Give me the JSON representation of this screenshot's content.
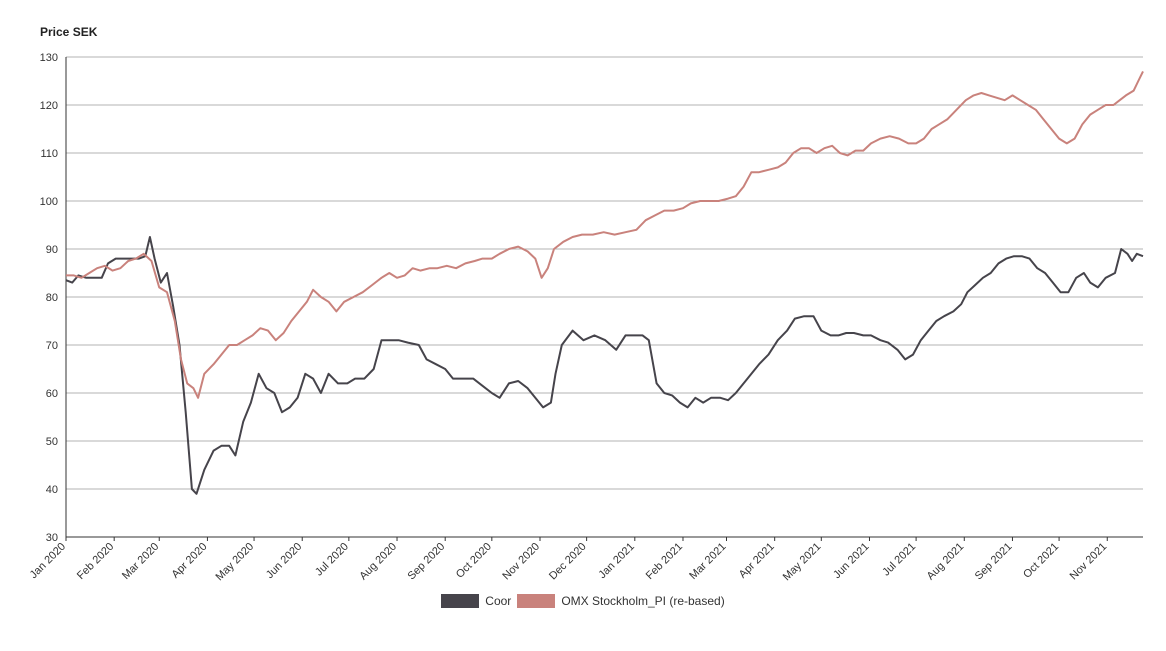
{
  "chart_data": {
    "type": "line",
    "ylabel": "Price SEK",
    "ylim": [
      30,
      130
    ],
    "yticks": [
      30,
      40,
      50,
      60,
      70,
      80,
      90,
      100,
      110,
      120,
      130
    ],
    "grid": "horizontal",
    "legend_position": "bottom-center",
    "x_tick_labels": [
      "Jan 2020",
      "Feb 2020",
      "Mar 2020",
      "Apr 2020",
      "May 2020",
      "Jun 2020",
      "Jul 2020",
      "Aug 2020",
      "Sep 2020",
      "Oct 2020",
      "Nov 2020",
      "Dec 2020",
      "Jan 2021",
      "Feb 2021",
      "Mar 2021",
      "Apr 2021",
      "May 2021",
      "Jun 2021",
      "Jul 2021",
      "Aug 2021",
      "Sep 2021",
      "Oct 2021",
      "Nov 2021"
    ],
    "x_range": [
      "2020-01-01",
      "2021-11-24"
    ],
    "series": [
      {
        "name": "Coor",
        "color": "#46444b",
        "points": [
          [
            "2020-01-01",
            83.5
          ],
          [
            "2020-01-05",
            83
          ],
          [
            "2020-01-09",
            84.5
          ],
          [
            "2020-01-14",
            84
          ],
          [
            "2020-01-19",
            84
          ],
          [
            "2020-01-24",
            84
          ],
          [
            "2020-01-28",
            87
          ],
          [
            "2020-02-02",
            88
          ],
          [
            "2020-02-07",
            88
          ],
          [
            "2020-02-12",
            88
          ],
          [
            "2020-02-17",
            88
          ],
          [
            "2020-02-21",
            88.5
          ],
          [
            "2020-02-24",
            92.5
          ],
          [
            "2020-02-27",
            88
          ],
          [
            "2020-03-02",
            83
          ],
          [
            "2020-03-06",
            85
          ],
          [
            "2020-03-10",
            78
          ],
          [
            "2020-03-14",
            70
          ],
          [
            "2020-03-18",
            56
          ],
          [
            "2020-03-22",
            40
          ],
          [
            "2020-03-25",
            39
          ],
          [
            "2020-03-30",
            44
          ],
          [
            "2020-04-05",
            48
          ],
          [
            "2020-04-10",
            49
          ],
          [
            "2020-04-15",
            49
          ],
          [
            "2020-04-19",
            47
          ],
          [
            "2020-04-24",
            54
          ],
          [
            "2020-04-29",
            58
          ],
          [
            "2020-05-04",
            64
          ],
          [
            "2020-05-09",
            61
          ],
          [
            "2020-05-14",
            60
          ],
          [
            "2020-05-19",
            56
          ],
          [
            "2020-05-24",
            57
          ],
          [
            "2020-05-29",
            59
          ],
          [
            "2020-06-03",
            64
          ],
          [
            "2020-06-08",
            63
          ],
          [
            "2020-06-13",
            60
          ],
          [
            "2020-06-18",
            64
          ],
          [
            "2020-06-24",
            62
          ],
          [
            "2020-06-30",
            62
          ],
          [
            "2020-07-05",
            63
          ],
          [
            "2020-07-11",
            63
          ],
          [
            "2020-07-17",
            65
          ],
          [
            "2020-07-22",
            71
          ],
          [
            "2020-07-28",
            71
          ],
          [
            "2020-08-02",
            71
          ],
          [
            "2020-08-08",
            70.5
          ],
          [
            "2020-08-15",
            70
          ],
          [
            "2020-08-20",
            67
          ],
          [
            "2020-08-26",
            66
          ],
          [
            "2020-09-01",
            65
          ],
          [
            "2020-09-06",
            63
          ],
          [
            "2020-09-12",
            63
          ],
          [
            "2020-09-19",
            63
          ],
          [
            "2020-09-25",
            61.5
          ],
          [
            "2020-10-01",
            60
          ],
          [
            "2020-10-06",
            59
          ],
          [
            "2020-10-12",
            62
          ],
          [
            "2020-10-18",
            62.5
          ],
          [
            "2020-10-24",
            61
          ],
          [
            "2020-10-29",
            59
          ],
          [
            "2020-11-03",
            57
          ],
          [
            "2020-11-08",
            58
          ],
          [
            "2020-11-11",
            64
          ],
          [
            "2020-11-15",
            70
          ],
          [
            "2020-11-22",
            73
          ],
          [
            "2020-11-29",
            71
          ],
          [
            "2020-12-06",
            72
          ],
          [
            "2020-12-13",
            71
          ],
          [
            "2020-12-20",
            69
          ],
          [
            "2020-12-26",
            72
          ],
          [
            "2021-01-01",
            72
          ],
          [
            "2021-01-06",
            72
          ],
          [
            "2021-01-10",
            71
          ],
          [
            "2021-01-15",
            62
          ],
          [
            "2021-01-20",
            60
          ],
          [
            "2021-01-25",
            59.5
          ],
          [
            "2021-01-30",
            58
          ],
          [
            "2021-02-04",
            57
          ],
          [
            "2021-02-09",
            59
          ],
          [
            "2021-02-14",
            58
          ],
          [
            "2021-02-19",
            59
          ],
          [
            "2021-02-25",
            59
          ],
          [
            "2021-03-02",
            58.5
          ],
          [
            "2021-03-07",
            60
          ],
          [
            "2021-03-12",
            62
          ],
          [
            "2021-03-17",
            64
          ],
          [
            "2021-03-22",
            66
          ],
          [
            "2021-03-28",
            68
          ],
          [
            "2021-04-03",
            71
          ],
          [
            "2021-04-09",
            73
          ],
          [
            "2021-04-14",
            75.5
          ],
          [
            "2021-04-20",
            76
          ],
          [
            "2021-04-26",
            76
          ],
          [
            "2021-05-01",
            73
          ],
          [
            "2021-05-07",
            72
          ],
          [
            "2021-05-12",
            72
          ],
          [
            "2021-05-17",
            72.5
          ],
          [
            "2021-05-22",
            72.5
          ],
          [
            "2021-05-28",
            72
          ],
          [
            "2021-06-02",
            72
          ],
          [
            "2021-06-08",
            71
          ],
          [
            "2021-06-13",
            70.5
          ],
          [
            "2021-06-19",
            69
          ],
          [
            "2021-06-24",
            67
          ],
          [
            "2021-06-29",
            68
          ],
          [
            "2021-07-04",
            71
          ],
          [
            "2021-07-09",
            73
          ],
          [
            "2021-07-14",
            75
          ],
          [
            "2021-07-19",
            76
          ],
          [
            "2021-07-25",
            77
          ],
          [
            "2021-07-30",
            78.5
          ],
          [
            "2021-08-03",
            81
          ],
          [
            "2021-08-08",
            82.5
          ],
          [
            "2021-08-13",
            84
          ],
          [
            "2021-08-18",
            85
          ],
          [
            "2021-08-23",
            87
          ],
          [
            "2021-08-28",
            88
          ],
          [
            "2021-09-02",
            88.5
          ],
          [
            "2021-09-07",
            88.5
          ],
          [
            "2021-09-12",
            88
          ],
          [
            "2021-09-17",
            86
          ],
          [
            "2021-09-22",
            85
          ],
          [
            "2021-09-27",
            83
          ],
          [
            "2021-10-02",
            81
          ],
          [
            "2021-10-07",
            81
          ],
          [
            "2021-10-12",
            84
          ],
          [
            "2021-10-17",
            85
          ],
          [
            "2021-10-21",
            83
          ],
          [
            "2021-10-26",
            82
          ],
          [
            "2021-10-31",
            84
          ],
          [
            "2021-11-06",
            85
          ],
          [
            "2021-11-10",
            90
          ],
          [
            "2021-11-14",
            89
          ],
          [
            "2021-11-17",
            87.5
          ],
          [
            "2021-11-20",
            89
          ],
          [
            "2021-11-24",
            88.5
          ]
        ]
      },
      {
        "name": "OMX Stockholm_PI (re-based)",
        "color": "#c9827c",
        "points": [
          [
            "2020-01-01",
            84.5
          ],
          [
            "2020-01-06",
            84.5
          ],
          [
            "2020-01-11",
            84
          ],
          [
            "2020-01-16",
            85
          ],
          [
            "2020-01-21",
            86
          ],
          [
            "2020-01-26",
            86.5
          ],
          [
            "2020-01-31",
            85.5
          ],
          [
            "2020-02-05",
            86
          ],
          [
            "2020-02-10",
            87.5
          ],
          [
            "2020-02-15",
            88
          ],
          [
            "2020-02-20",
            89
          ],
          [
            "2020-02-25",
            87.5
          ],
          [
            "2020-03-01",
            82
          ],
          [
            "2020-03-06",
            81
          ],
          [
            "2020-03-11",
            75
          ],
          [
            "2020-03-15",
            67
          ],
          [
            "2020-03-19",
            62
          ],
          [
            "2020-03-23",
            61
          ],
          [
            "2020-03-26",
            59
          ],
          [
            "2020-03-30",
            64
          ],
          [
            "2020-04-05",
            66
          ],
          [
            "2020-04-10",
            68
          ],
          [
            "2020-04-15",
            70
          ],
          [
            "2020-04-20",
            70
          ],
          [
            "2020-04-25",
            71
          ],
          [
            "2020-04-30",
            72
          ],
          [
            "2020-05-05",
            73.5
          ],
          [
            "2020-05-10",
            73
          ],
          [
            "2020-05-15",
            71
          ],
          [
            "2020-05-20",
            72.5
          ],
          [
            "2020-05-25",
            75
          ],
          [
            "2020-05-30",
            77
          ],
          [
            "2020-06-04",
            79
          ],
          [
            "2020-06-08",
            81.5
          ],
          [
            "2020-06-13",
            80
          ],
          [
            "2020-06-18",
            79
          ],
          [
            "2020-06-23",
            77
          ],
          [
            "2020-06-28",
            79
          ],
          [
            "2020-07-04",
            80
          ],
          [
            "2020-07-10",
            81
          ],
          [
            "2020-07-16",
            82.5
          ],
          [
            "2020-07-22",
            84
          ],
          [
            "2020-07-27",
            85
          ],
          [
            "2020-08-01",
            84
          ],
          [
            "2020-08-06",
            84.5
          ],
          [
            "2020-08-11",
            86
          ],
          [
            "2020-08-16",
            85.5
          ],
          [
            "2020-08-22",
            86
          ],
          [
            "2020-08-27",
            86
          ],
          [
            "2020-09-02",
            86.5
          ],
          [
            "2020-09-08",
            86
          ],
          [
            "2020-09-14",
            87
          ],
          [
            "2020-09-20",
            87.5
          ],
          [
            "2020-09-25",
            88
          ],
          [
            "2020-10-01",
            88
          ],
          [
            "2020-10-06",
            89
          ],
          [
            "2020-10-12",
            90
          ],
          [
            "2020-10-18",
            90.5
          ],
          [
            "2020-10-24",
            89.5
          ],
          [
            "2020-10-29",
            88
          ],
          [
            "2020-11-02",
            84
          ],
          [
            "2020-11-06",
            86
          ],
          [
            "2020-11-10",
            90
          ],
          [
            "2020-11-16",
            91.5
          ],
          [
            "2020-11-22",
            92.5
          ],
          [
            "2020-11-28",
            93
          ],
          [
            "2020-12-05",
            93
          ],
          [
            "2020-12-12",
            93.5
          ],
          [
            "2020-12-19",
            93
          ],
          [
            "2020-12-26",
            93.5
          ],
          [
            "2021-01-02",
            94
          ],
          [
            "2021-01-08",
            96
          ],
          [
            "2021-01-14",
            97
          ],
          [
            "2021-01-20",
            98
          ],
          [
            "2021-01-26",
            98
          ],
          [
            "2021-02-01",
            98.5
          ],
          [
            "2021-02-06",
            99.5
          ],
          [
            "2021-02-12",
            100
          ],
          [
            "2021-02-18",
            100
          ],
          [
            "2021-02-24",
            100
          ],
          [
            "2021-03-02",
            100.5
          ],
          [
            "2021-03-07",
            101
          ],
          [
            "2021-03-12",
            103
          ],
          [
            "2021-03-17",
            106
          ],
          [
            "2021-03-22",
            106
          ],
          [
            "2021-03-28",
            106.5
          ],
          [
            "2021-04-03",
            107
          ],
          [
            "2021-04-08",
            108
          ],
          [
            "2021-04-13",
            110
          ],
          [
            "2021-04-18",
            111
          ],
          [
            "2021-04-23",
            111
          ],
          [
            "2021-04-28",
            110
          ],
          [
            "2021-05-03",
            111
          ],
          [
            "2021-05-08",
            111.5
          ],
          [
            "2021-05-13",
            110
          ],
          [
            "2021-05-18",
            109.5
          ],
          [
            "2021-05-23",
            110.5
          ],
          [
            "2021-05-28",
            110.5
          ],
          [
            "2021-06-02",
            112
          ],
          [
            "2021-06-08",
            113
          ],
          [
            "2021-06-14",
            113.5
          ],
          [
            "2021-06-20",
            113
          ],
          [
            "2021-06-26",
            112
          ],
          [
            "2021-07-01",
            112
          ],
          [
            "2021-07-06",
            113
          ],
          [
            "2021-07-11",
            115
          ],
          [
            "2021-07-16",
            116
          ],
          [
            "2021-07-21",
            117
          ],
          [
            "2021-07-27",
            119
          ],
          [
            "2021-08-02",
            121
          ],
          [
            "2021-08-07",
            122
          ],
          [
            "2021-08-12",
            122.5
          ],
          [
            "2021-08-17",
            122
          ],
          [
            "2021-08-22",
            121.5
          ],
          [
            "2021-08-27",
            121
          ],
          [
            "2021-09-01",
            122
          ],
          [
            "2021-09-06",
            121
          ],
          [
            "2021-09-11",
            120
          ],
          [
            "2021-09-16",
            119
          ],
          [
            "2021-09-21",
            117
          ],
          [
            "2021-09-26",
            115
          ],
          [
            "2021-10-01",
            113
          ],
          [
            "2021-10-06",
            112
          ],
          [
            "2021-10-11",
            113
          ],
          [
            "2021-10-16",
            116
          ],
          [
            "2021-10-21",
            118
          ],
          [
            "2021-10-26",
            119
          ],
          [
            "2021-10-31",
            120
          ],
          [
            "2021-11-05",
            120
          ],
          [
            "2021-11-09",
            121
          ],
          [
            "2021-11-13",
            122
          ],
          [
            "2021-11-18",
            123
          ],
          [
            "2021-11-21",
            125
          ],
          [
            "2021-11-24",
            127
          ]
        ]
      }
    ]
  }
}
